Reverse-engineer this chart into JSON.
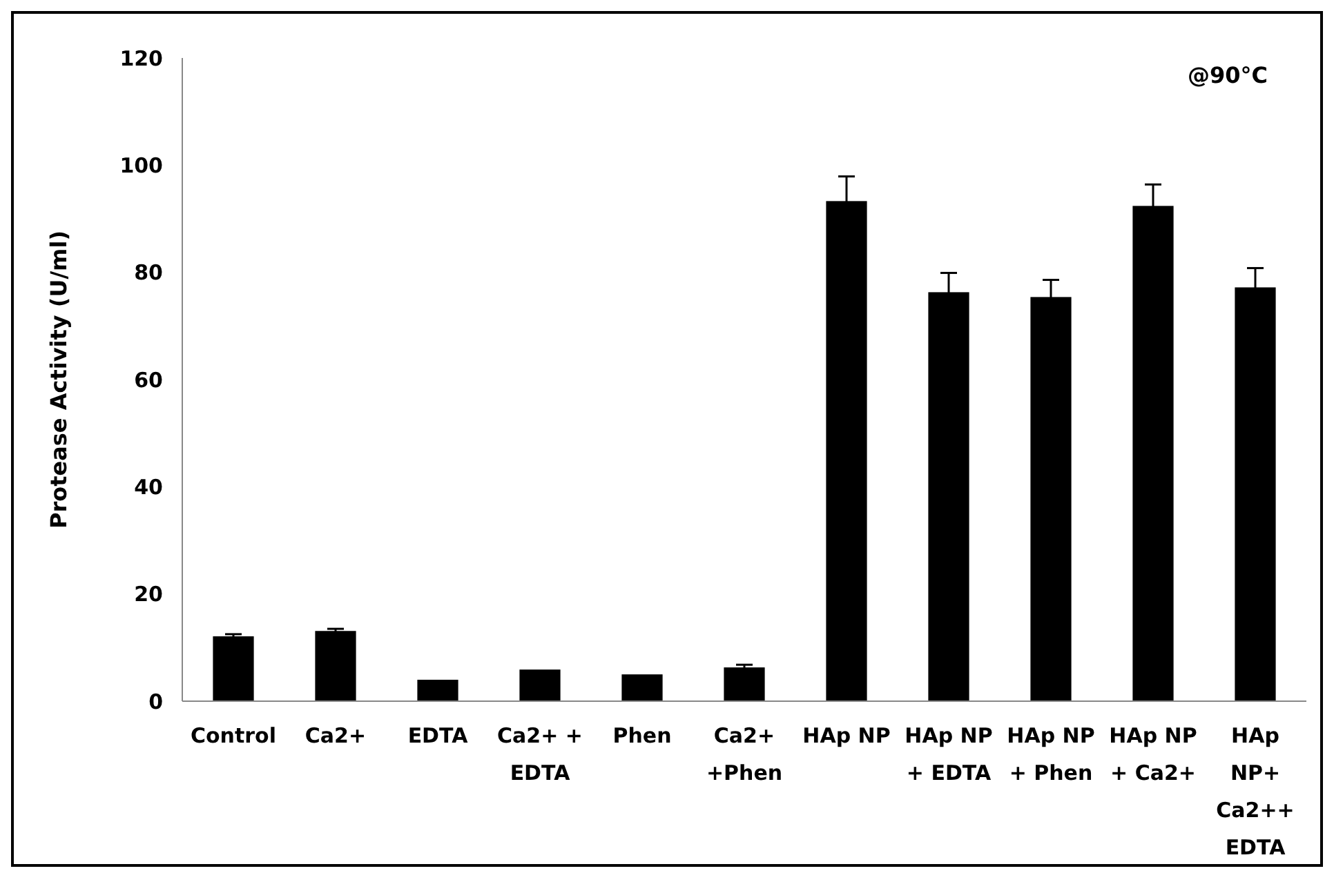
{
  "chart_data": {
    "type": "bar",
    "ylabel": "Protease Activity (U/ml)",
    "categories": [
      "Control",
      "Ca2+",
      "EDTA",
      "Ca2+ +\nEDTA",
      "Phen",
      "Ca2+\n+Phen",
      "HAp NP",
      "HAp NP\n+ EDTA",
      "HAp NP\n+ Phen",
      "HAp NP\n+ Ca2+",
      "HAp\nNP+\nCa2++\nEDTA"
    ],
    "values": [
      12.1,
      13.1,
      4.0,
      5.9,
      5.0,
      6.3,
      93.3,
      76.3,
      75.4,
      92.4,
      77.2
    ],
    "errors": [
      0.4,
      0.4,
      null,
      null,
      null,
      0.5,
      4.6,
      3.6,
      3.2,
      4.0,
      3.6
    ],
    "color": "#000000",
    "ylim": [
      0,
      120
    ],
    "yticks": [
      0,
      20,
      40,
      60,
      80,
      100,
      120
    ],
    "grid": false,
    "annotations": [
      "@90°C"
    ]
  }
}
